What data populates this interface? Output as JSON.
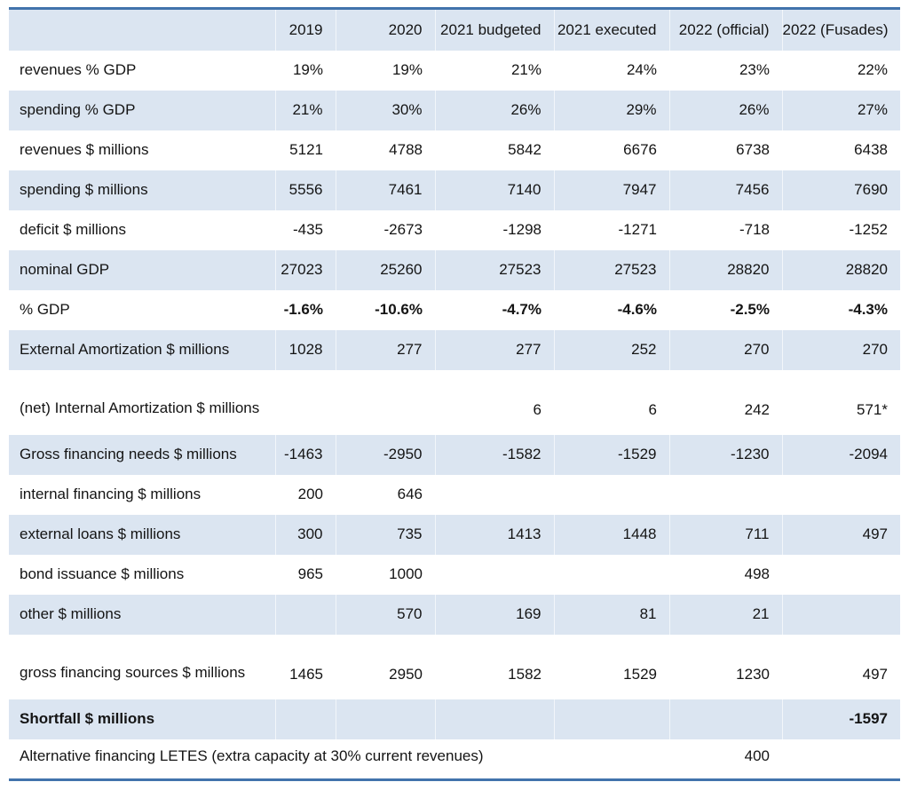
{
  "colors": {
    "accent_blue": "#4273ac",
    "row_shade": "#dbe5f1",
    "text": "#141414"
  },
  "table": {
    "columns": [
      "",
      "2019",
      "2020",
      "2021 budgeted",
      "2021 executed",
      "2022 (official)",
      "2022 (Fusades)"
    ],
    "rows": [
      {
        "label": "revenues % GDP",
        "values": [
          "19%",
          "19%",
          "21%",
          "24%",
          "23%",
          "22%"
        ],
        "shaded": false
      },
      {
        "label": "spending % GDP",
        "values": [
          "21%",
          "30%",
          "26%",
          "29%",
          "26%",
          "27%"
        ],
        "shaded": true
      },
      {
        "label": "revenues $  millions",
        "values": [
          "5121",
          "4788",
          "5842",
          "6676",
          "6738",
          "6438"
        ],
        "shaded": false
      },
      {
        "label": "spending $  millions",
        "values": [
          "5556",
          "7461",
          "7140",
          "7947",
          "7456",
          "7690"
        ],
        "shaded": true
      },
      {
        "label": "deficit $  millions",
        "values": [
          "-435",
          "-2673",
          "-1298",
          "-1271",
          "-718",
          "-1252"
        ],
        "shaded": false
      },
      {
        "label": "nominal GDP",
        "values": [
          "27023",
          "25260",
          "27523",
          "27523",
          "28820",
          "28820"
        ],
        "shaded": true
      },
      {
        "label": "% GDP",
        "values": [
          "-1.6%",
          "-10.6%",
          "-4.7%",
          "-4.6%",
          "-2.5%",
          "-4.3%"
        ],
        "shaded": false,
        "bold_values": true
      },
      {
        "label": "External Amortization $  millions",
        "values": [
          "1028",
          "277",
          "277",
          "252",
          "270",
          "270"
        ],
        "shaded": true
      },
      {
        "label": "(net) Internal Amortization $ millions",
        "values": [
          "",
          "",
          "6",
          "6",
          "242",
          "571*"
        ],
        "shaded": false,
        "tall": true
      },
      {
        "label": "Gross financing needs $  millions",
        "values": [
          "-1463",
          "-2950",
          "-1582",
          "-1529",
          "-1230",
          "-2094"
        ],
        "shaded": true
      },
      {
        "label": "internal financing $  millions",
        "values": [
          "200",
          "646",
          "",
          "",
          "",
          ""
        ],
        "shaded": false
      },
      {
        "label": "external loans $  millions",
        "values": [
          "300",
          "735",
          "1413",
          "1448",
          "711",
          "497"
        ],
        "shaded": true
      },
      {
        "label": "bond issuance $  millions",
        "values": [
          "965",
          "1000",
          "",
          "",
          "498",
          ""
        ],
        "shaded": false
      },
      {
        "label": "other $  millions",
        "values": [
          "",
          "570",
          "169",
          "81",
          "21",
          ""
        ],
        "shaded": true
      },
      {
        "label": "gross financing sources $ millions",
        "values": [
          "1465",
          "2950",
          "1582",
          "1529",
          "1230",
          "497"
        ],
        "shaded": false,
        "tall": true
      },
      {
        "label": "Shortfall $  millions",
        "values": [
          "",
          "",
          "",
          "",
          "",
          "-1597"
        ],
        "shaded": true,
        "bold_label": true
      },
      {
        "label": "Alternative financing LETES (extra capacity at 30% current revenues)",
        "values": [
          "",
          "",
          "",
          "",
          "400",
          ""
        ],
        "shaded": false,
        "label_colspan": 5,
        "note_row": true
      }
    ]
  }
}
